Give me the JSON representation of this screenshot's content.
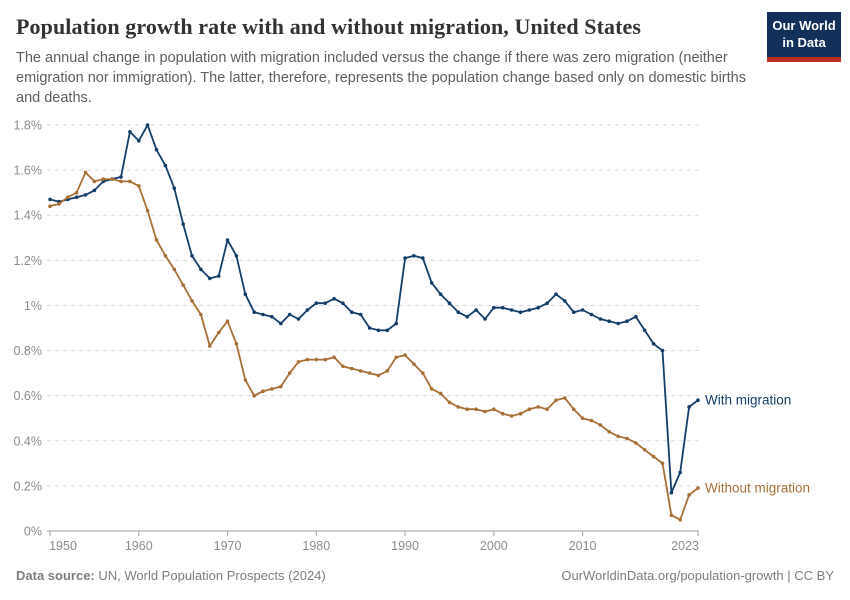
{
  "header": {
    "title": "Population growth rate with and without migration, United States",
    "subtitle": "The annual change in population with migration included versus the change if there was zero migration (neither emigration nor immigration). The latter, therefore, represents the population change based only on domestic births and deaths.",
    "logo": {
      "line1": "Our World",
      "line2": "in Data",
      "bg_color": "#12305a",
      "stripe_color": "#bc2e22"
    }
  },
  "chart_data": {
    "type": "line",
    "title": "Population growth rate with and without migration, United States",
    "xlabel": "",
    "ylabel": "",
    "ylim": [
      0,
      1.8
    ],
    "grid": "horizontal-dashed",
    "legend_position": "end-of-line-labels",
    "x": [
      1950,
      1951,
      1952,
      1953,
      1954,
      1955,
      1956,
      1957,
      1958,
      1959,
      1960,
      1961,
      1962,
      1963,
      1964,
      1965,
      1966,
      1967,
      1968,
      1969,
      1970,
      1971,
      1972,
      1973,
      1974,
      1975,
      1976,
      1977,
      1978,
      1979,
      1980,
      1981,
      1982,
      1983,
      1984,
      1985,
      1986,
      1987,
      1988,
      1989,
      1990,
      1991,
      1992,
      1993,
      1994,
      1995,
      1996,
      1997,
      1998,
      1999,
      2000,
      2001,
      2002,
      2003,
      2004,
      2005,
      2006,
      2007,
      2008,
      2009,
      2010,
      2011,
      2012,
      2013,
      2014,
      2015,
      2016,
      2017,
      2018,
      2019,
      2020,
      2021,
      2022,
      2023
    ],
    "series": [
      {
        "name": "With migration",
        "color": "#133e68",
        "values": [
          1.47,
          1.46,
          1.47,
          1.48,
          1.49,
          1.51,
          1.55,
          1.56,
          1.57,
          1.77,
          1.73,
          1.8,
          1.69,
          1.62,
          1.52,
          1.36,
          1.22,
          1.16,
          1.12,
          1.13,
          1.29,
          1.22,
          1.05,
          0.97,
          0.96,
          0.95,
          0.92,
          0.96,
          0.94,
          0.98,
          1.01,
          1.01,
          1.03,
          1.01,
          0.97,
          0.96,
          0.9,
          0.89,
          0.89,
          0.92,
          1.21,
          1.22,
          1.21,
          1.1,
          1.05,
          1.01,
          0.97,
          0.95,
          0.98,
          0.94,
          0.99,
          0.99,
          0.98,
          0.97,
          0.98,
          0.99,
          1.01,
          1.05,
          1.02,
          0.97,
          0.98,
          0.96,
          0.94,
          0.93,
          0.92,
          0.93,
          0.95,
          0.89,
          0.83,
          0.8,
          0.17,
          0.26,
          0.55,
          0.58
        ]
      },
      {
        "name": "Without migration",
        "color": "#a77037",
        "values": [
          1.44,
          1.45,
          1.48,
          1.5,
          1.59,
          1.55,
          1.56,
          1.56,
          1.55,
          1.55,
          1.53,
          1.42,
          1.29,
          1.22,
          1.16,
          1.09,
          1.02,
          0.96,
          0.82,
          0.88,
          0.93,
          0.83,
          0.67,
          0.6,
          0.62,
          0.63,
          0.64,
          0.7,
          0.75,
          0.76,
          0.76,
          0.76,
          0.77,
          0.73,
          0.72,
          0.71,
          0.7,
          0.69,
          0.71,
          0.77,
          0.78,
          0.74,
          0.7,
          0.63,
          0.61,
          0.57,
          0.55,
          0.54,
          0.54,
          0.53,
          0.54,
          0.52,
          0.51,
          0.52,
          0.54,
          0.55,
          0.54,
          0.58,
          0.59,
          0.54,
          0.5,
          0.49,
          0.47,
          0.44,
          0.42,
          0.41,
          0.39,
          0.36,
          0.33,
          0.3,
          0.07,
          0.05,
          0.16,
          0.19
        ]
      }
    ],
    "yticks": [
      {
        "v": 0,
        "label": "0%"
      },
      {
        "v": 0.2,
        "label": "0.2%"
      },
      {
        "v": 0.4,
        "label": "0.4%"
      },
      {
        "v": 0.6,
        "label": "0.6%"
      },
      {
        "v": 0.8,
        "label": "0.8%"
      },
      {
        "v": 1.0,
        "label": "1%"
      },
      {
        "v": 1.2,
        "label": "1.2%"
      },
      {
        "v": 1.4,
        "label": "1.4%"
      },
      {
        "v": 1.6,
        "label": "1.6%"
      },
      {
        "v": 1.8,
        "label": "1.8%"
      }
    ],
    "xticks": [
      1950,
      1960,
      1970,
      1980,
      1990,
      2000,
      2010,
      2023
    ]
  },
  "footer": {
    "source_label": "Data source:",
    "source_text": " UN, World Population Prospects (2024)",
    "link_text": "OurWorldinData.org/population-growth | CC BY"
  }
}
